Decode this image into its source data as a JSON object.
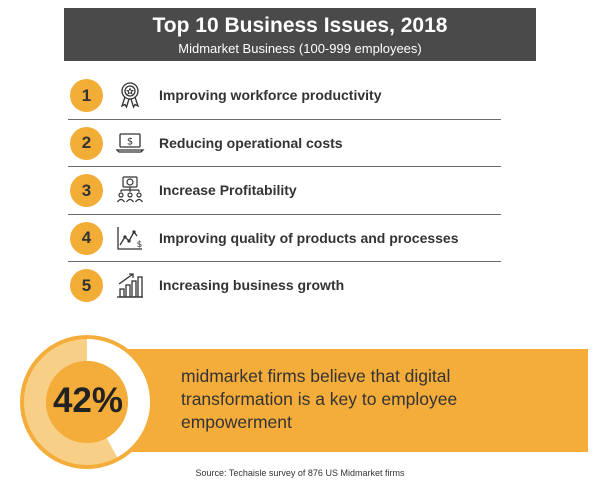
{
  "header": {
    "title": "Top 10 Business Issues, 2018",
    "subtitle": "Midmarket Business (100-999 employees)"
  },
  "issues": [
    {
      "rank": "1",
      "label": "Improving workforce productivity",
      "icon": "award-ribbon-icon"
    },
    {
      "rank": "2",
      "label": "Reducing operational costs",
      "icon": "laptop-dollar-icon"
    },
    {
      "rank": "3",
      "label": "Increase Profitability",
      "icon": "dollar-network-icon"
    },
    {
      "rank": "4",
      "label": "Improving quality of products and processes",
      "icon": "trend-line-dollar-icon"
    },
    {
      "rank": "5",
      "label": "Increasing business growth",
      "icon": "growth-bars-icon"
    }
  ],
  "stat": {
    "percent_label": "42%",
    "percent_value": 42,
    "text": "midmarket firms believe that digital transformation is a key to employee empowerment"
  },
  "source": "Source: Techaisle survey of 876 US Midmarket firms",
  "colors": {
    "accent": "#f2ad36",
    "banner": "#f4ac3a",
    "header": "#4a4a4a",
    "ring_light": "#f8cf86"
  }
}
